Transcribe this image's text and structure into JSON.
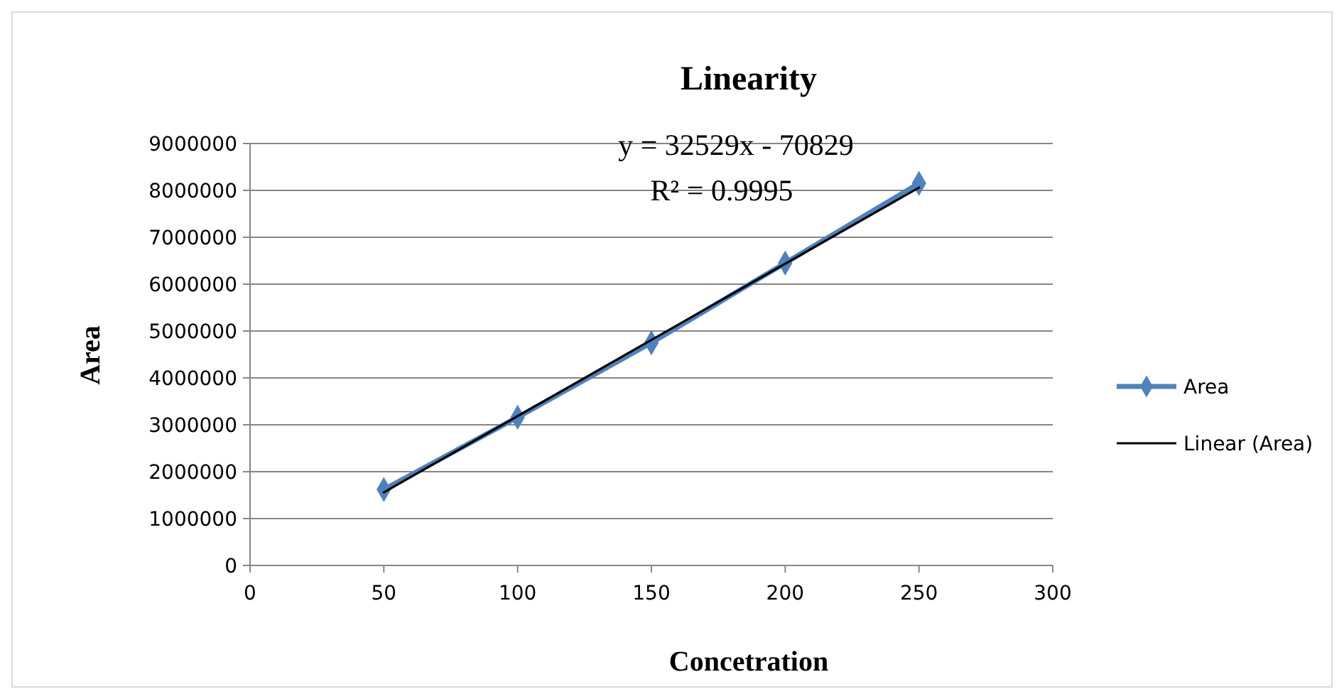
{
  "chart_data": {
    "type": "line",
    "title": "Linearity",
    "xlabel": "Concetration",
    "ylabel": "Area",
    "annotations": [
      "y = 32529x - 70829",
      "R² = 0.9995"
    ],
    "x": [
      50,
      100,
      150,
      200,
      250
    ],
    "series": [
      {
        "name": "Area",
        "color": "#4f81bd",
        "values": [
          1620000,
          3160000,
          4750000,
          6450000,
          8150000
        ],
        "marker": "diamond"
      },
      {
        "name": "Linear (Area)",
        "color": "#000000",
        "x": [
          50,
          250
        ],
        "values": [
          1560000,
          8060000
        ],
        "marker": "none"
      }
    ],
    "xlim": [
      0,
      300
    ],
    "xticks": [
      0,
      50,
      100,
      150,
      200,
      250,
      300
    ],
    "ylim": [
      0,
      9000000
    ],
    "yticks": [
      0,
      1000000,
      2000000,
      3000000,
      4000000,
      5000000,
      6000000,
      7000000,
      8000000,
      9000000
    ],
    "grid": "y",
    "legend": "right",
    "line_style": "solid"
  }
}
